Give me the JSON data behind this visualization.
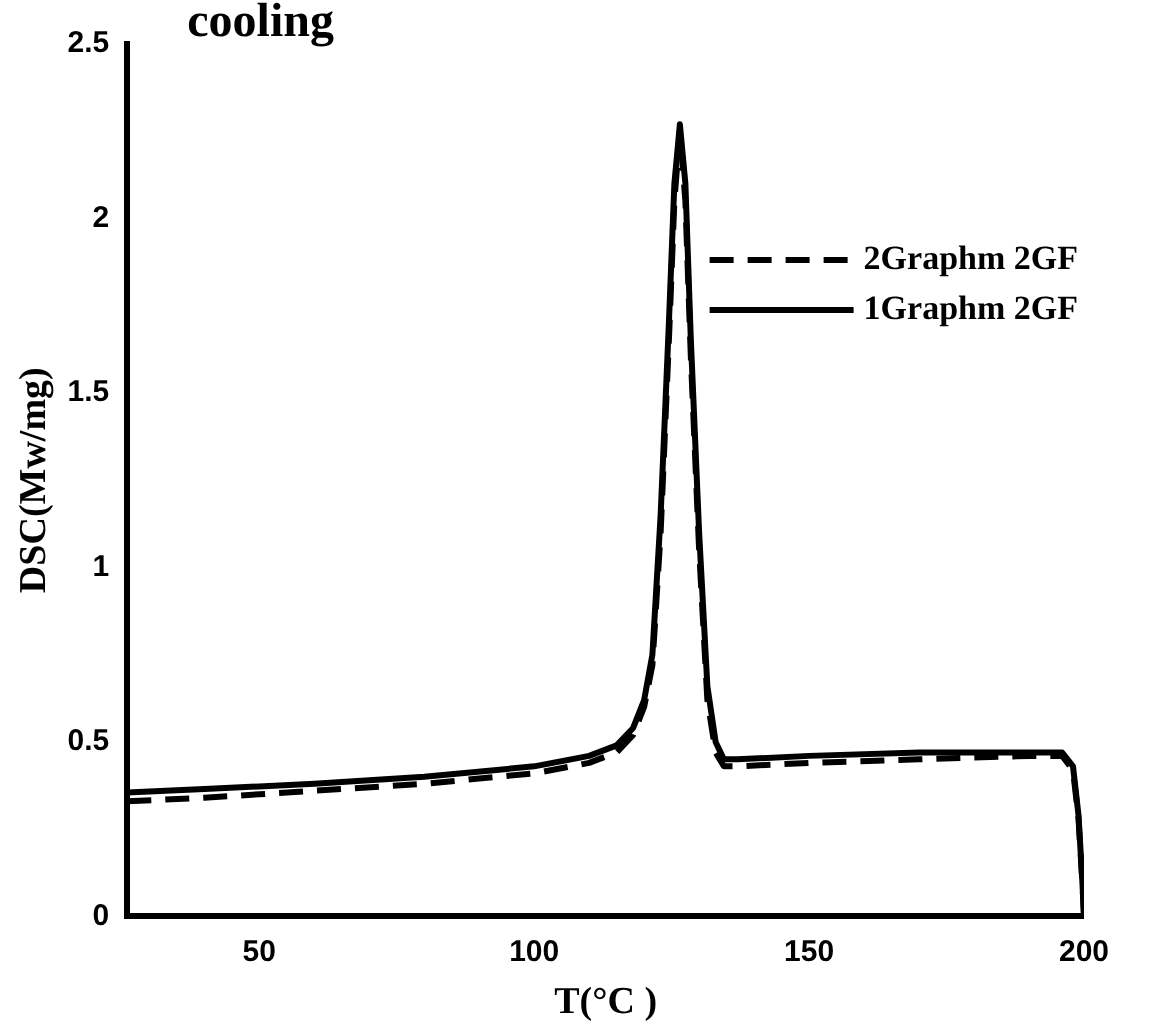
{
  "chart_data": {
    "type": "line",
    "title": "cooling",
    "xlabel": "T(°C )",
    "ylabel": "DSC(Mw/mg)",
    "xlim": [
      26,
      200
    ],
    "xticks": [
      50,
      100,
      150,
      200
    ],
    "ylim": [
      0,
      2.5
    ],
    "yticks": [
      0,
      0.5,
      1,
      1.5,
      2,
      2.5
    ],
    "grid": false,
    "legend": "top right",
    "marker": "none",
    "series": [
      {
        "name": "2Graphm 2GF",
        "color": "#000000",
        "line_style": "dashed",
        "x": [
          26,
          40,
          60,
          80,
          100,
          110,
          115,
          118,
          120,
          121.5,
          123,
          124.5,
          125.5,
          126.5,
          127.5,
          128.5,
          130,
          131.5,
          133,
          134.5,
          137,
          150,
          170,
          190,
          196,
          198,
          199,
          199.7,
          200
        ],
        "values": [
          0.33,
          0.34,
          0.36,
          0.38,
          0.41,
          0.44,
          0.47,
          0.52,
          0.6,
          0.72,
          1.1,
          1.65,
          2.05,
          2.25,
          2.05,
          1.6,
          1.05,
          0.62,
          0.47,
          0.43,
          0.43,
          0.44,
          0.45,
          0.46,
          0.46,
          0.42,
          0.28,
          0.1,
          0
        ]
      },
      {
        "name": "1Graphm 2GF",
        "color": "#000000",
        "line_style": "solid",
        "x": [
          26,
          40,
          60,
          80,
          100,
          110,
          115,
          118,
          120,
          121.5,
          123,
          124.5,
          125.5,
          126.5,
          127.5,
          128.5,
          130,
          131.5,
          133,
          134.5,
          137,
          150,
          170,
          190,
          196,
          198,
          199,
          199.7,
          200
        ],
        "values": [
          0.355,
          0.365,
          0.38,
          0.4,
          0.43,
          0.46,
          0.49,
          0.54,
          0.62,
          0.75,
          1.15,
          1.7,
          2.1,
          2.27,
          2.1,
          1.65,
          1.1,
          0.66,
          0.5,
          0.45,
          0.45,
          0.46,
          0.47,
          0.47,
          0.47,
          0.43,
          0.29,
          0.1,
          0
        ]
      }
    ]
  }
}
